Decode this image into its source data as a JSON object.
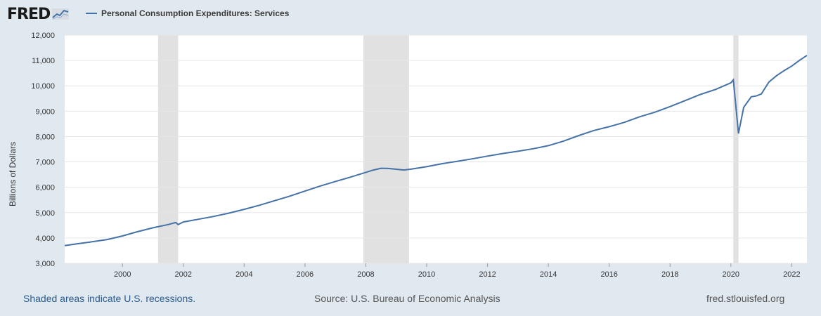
{
  "header": {
    "logo_text": "FRED",
    "legend_label": "Personal Consumption Expenditures: Services"
  },
  "colors": {
    "line": "#4572a7",
    "recession": "#e1e1e1",
    "background": "#e1e9f0",
    "plot": "#ffffff"
  },
  "footer": {
    "recession_note": "Shaded areas indicate U.S. recessions.",
    "source": "Source: U.S. Bureau of Economic Analysis",
    "url": "fred.stlouisfed.org"
  },
  "chart_data": {
    "type": "line",
    "title": "",
    "xlabel": "",
    "ylabel": "Billions of Dollars",
    "xlim": [
      1998.1,
      2022.5
    ],
    "ylim": [
      3000,
      12000
    ],
    "y_ticks": [
      3000,
      4000,
      5000,
      6000,
      7000,
      8000,
      9000,
      10000,
      11000,
      12000
    ],
    "y_tick_labels": [
      "3,000",
      "4,000",
      "5,000",
      "6,000",
      "7,000",
      "8,000",
      "9,000",
      "10,000",
      "11,000",
      "12,000"
    ],
    "x_ticks": [
      2000,
      2002,
      2004,
      2006,
      2008,
      2010,
      2012,
      2014,
      2016,
      2018,
      2020,
      2022
    ],
    "x_tick_labels": [
      "2000",
      "2002",
      "2004",
      "2006",
      "2008",
      "2010",
      "2012",
      "2014",
      "2016",
      "2018",
      "2020",
      "2022"
    ],
    "grid": "horizontal",
    "recessions": [
      [
        2001.17,
        2001.83
      ],
      [
        2007.92,
        2009.42
      ],
      [
        2020.08,
        2020.25
      ]
    ],
    "series": [
      {
        "name": "Personal Consumption Expenditures: Services",
        "x": [
          1998.1,
          1998.5,
          1999.0,
          1999.5,
          2000.0,
          2000.5,
          2001.0,
          2001.5,
          2001.75,
          2001.83,
          2002.0,
          2002.5,
          2003.0,
          2003.5,
          2004.0,
          2004.5,
          2005.0,
          2005.5,
          2006.0,
          2006.5,
          2007.0,
          2007.5,
          2008.0,
          2008.25,
          2008.5,
          2008.75,
          2009.0,
          2009.25,
          2009.5,
          2010.0,
          2010.5,
          2011.0,
          2011.5,
          2012.0,
          2012.5,
          2013.0,
          2013.5,
          2014.0,
          2014.5,
          2015.0,
          2015.5,
          2016.0,
          2016.5,
          2017.0,
          2017.5,
          2018.0,
          2018.5,
          2019.0,
          2019.5,
          2020.0,
          2020.08,
          2020.25,
          2020.42,
          2020.67,
          2020.83,
          2021.0,
          2021.25,
          2021.5,
          2021.75,
          2022.0,
          2022.25,
          2022.5
        ],
        "values": [
          3700,
          3770,
          3850,
          3940,
          4080,
          4250,
          4400,
          4530,
          4610,
          4530,
          4630,
          4740,
          4850,
          4980,
          5130,
          5290,
          5470,
          5650,
          5850,
          6050,
          6230,
          6400,
          6590,
          6680,
          6750,
          6740,
          6710,
          6680,
          6720,
          6810,
          6930,
          7020,
          7120,
          7230,
          7330,
          7420,
          7520,
          7640,
          7820,
          8040,
          8240,
          8390,
          8560,
          8780,
          8960,
          9180,
          9420,
          9660,
          9860,
          10120,
          10240,
          8120,
          9150,
          9570,
          9600,
          9680,
          10150,
          10400,
          10600,
          10780,
          11000,
          11200
        ]
      }
    ]
  }
}
